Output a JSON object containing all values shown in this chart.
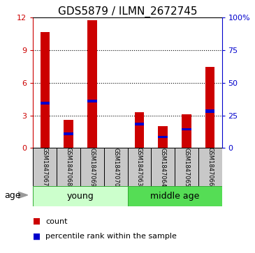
{
  "title": "GDS5879 / ILMN_2672745",
  "samples": [
    "GSM1847067",
    "GSM1847068",
    "GSM1847069",
    "GSM1847070",
    "GSM1847063",
    "GSM1847064",
    "GSM1847065",
    "GSM1847066"
  ],
  "red_values": [
    10.7,
    2.6,
    11.8,
    0.0,
    3.3,
    2.0,
    3.1,
    7.5
  ],
  "blue_bottom": [
    4.0,
    1.2,
    4.2,
    0.0,
    2.1,
    0.9,
    1.6,
    3.25
  ],
  "blue_height": [
    0.28,
    0.22,
    0.28,
    0.0,
    0.22,
    0.22,
    0.22,
    0.28
  ],
  "ylim_left": [
    0,
    12
  ],
  "yticks_left": [
    0,
    3,
    6,
    9,
    12
  ],
  "yticks_right": [
    0,
    25,
    50,
    75,
    100
  ],
  "ytick_labels_right": [
    "0",
    "25",
    "50",
    "75",
    "100%"
  ],
  "red_color": "#cc0000",
  "blue_color": "#0000cc",
  "bg_gray": "#c8c8c8",
  "young_color": "#ccffcc",
  "middleage_color": "#55dd55",
  "bar_width": 0.4,
  "title_fontsize": 11,
  "legend_count": "count",
  "legend_percentile": "percentile rank within the sample",
  "age_label": "age"
}
